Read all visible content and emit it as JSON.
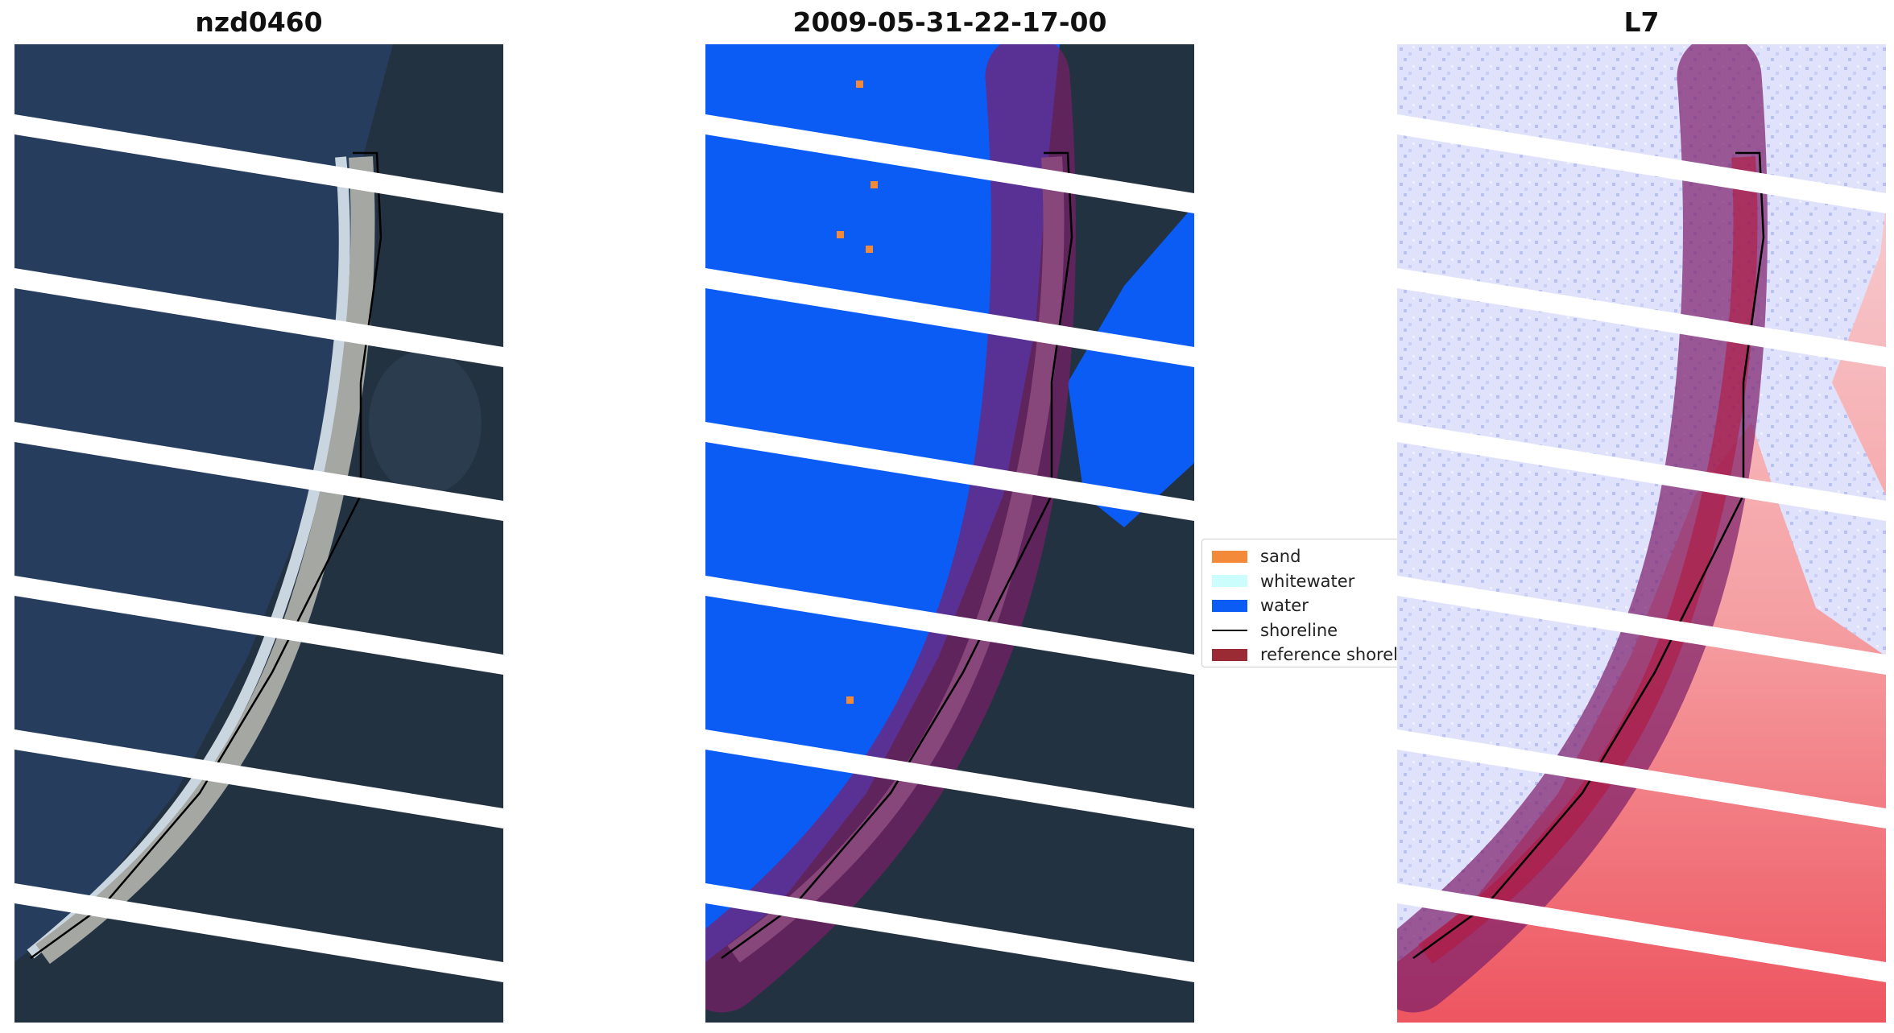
{
  "panels": [
    {
      "title": "nzd0460"
    },
    {
      "title": "2009-05-31-22-17-00"
    },
    {
      "title": "L7"
    }
  ],
  "legend": {
    "items": [
      {
        "label": "sand",
        "color": "#f28a3a",
        "kind": "patch"
      },
      {
        "label": "whitewater",
        "color": "#ccfdfd",
        "kind": "patch"
      },
      {
        "label": "water",
        "color": "#0b5cf5",
        "kind": "patch"
      },
      {
        "label": "shoreline",
        "color": "#000000",
        "kind": "line"
      },
      {
        "label": "reference shoreline",
        "color": "#9a2a33",
        "kind": "patch"
      }
    ]
  },
  "colors": {
    "ocean": "#263d5e",
    "land": "#22303f",
    "beach": "#a4a7a3",
    "surf": "#c9d6df",
    "water_class": "#0b5cf5",
    "buffer": "#7a1e6a",
    "index_water": "#dfe2fa",
    "index_land": "#f48a8a"
  }
}
